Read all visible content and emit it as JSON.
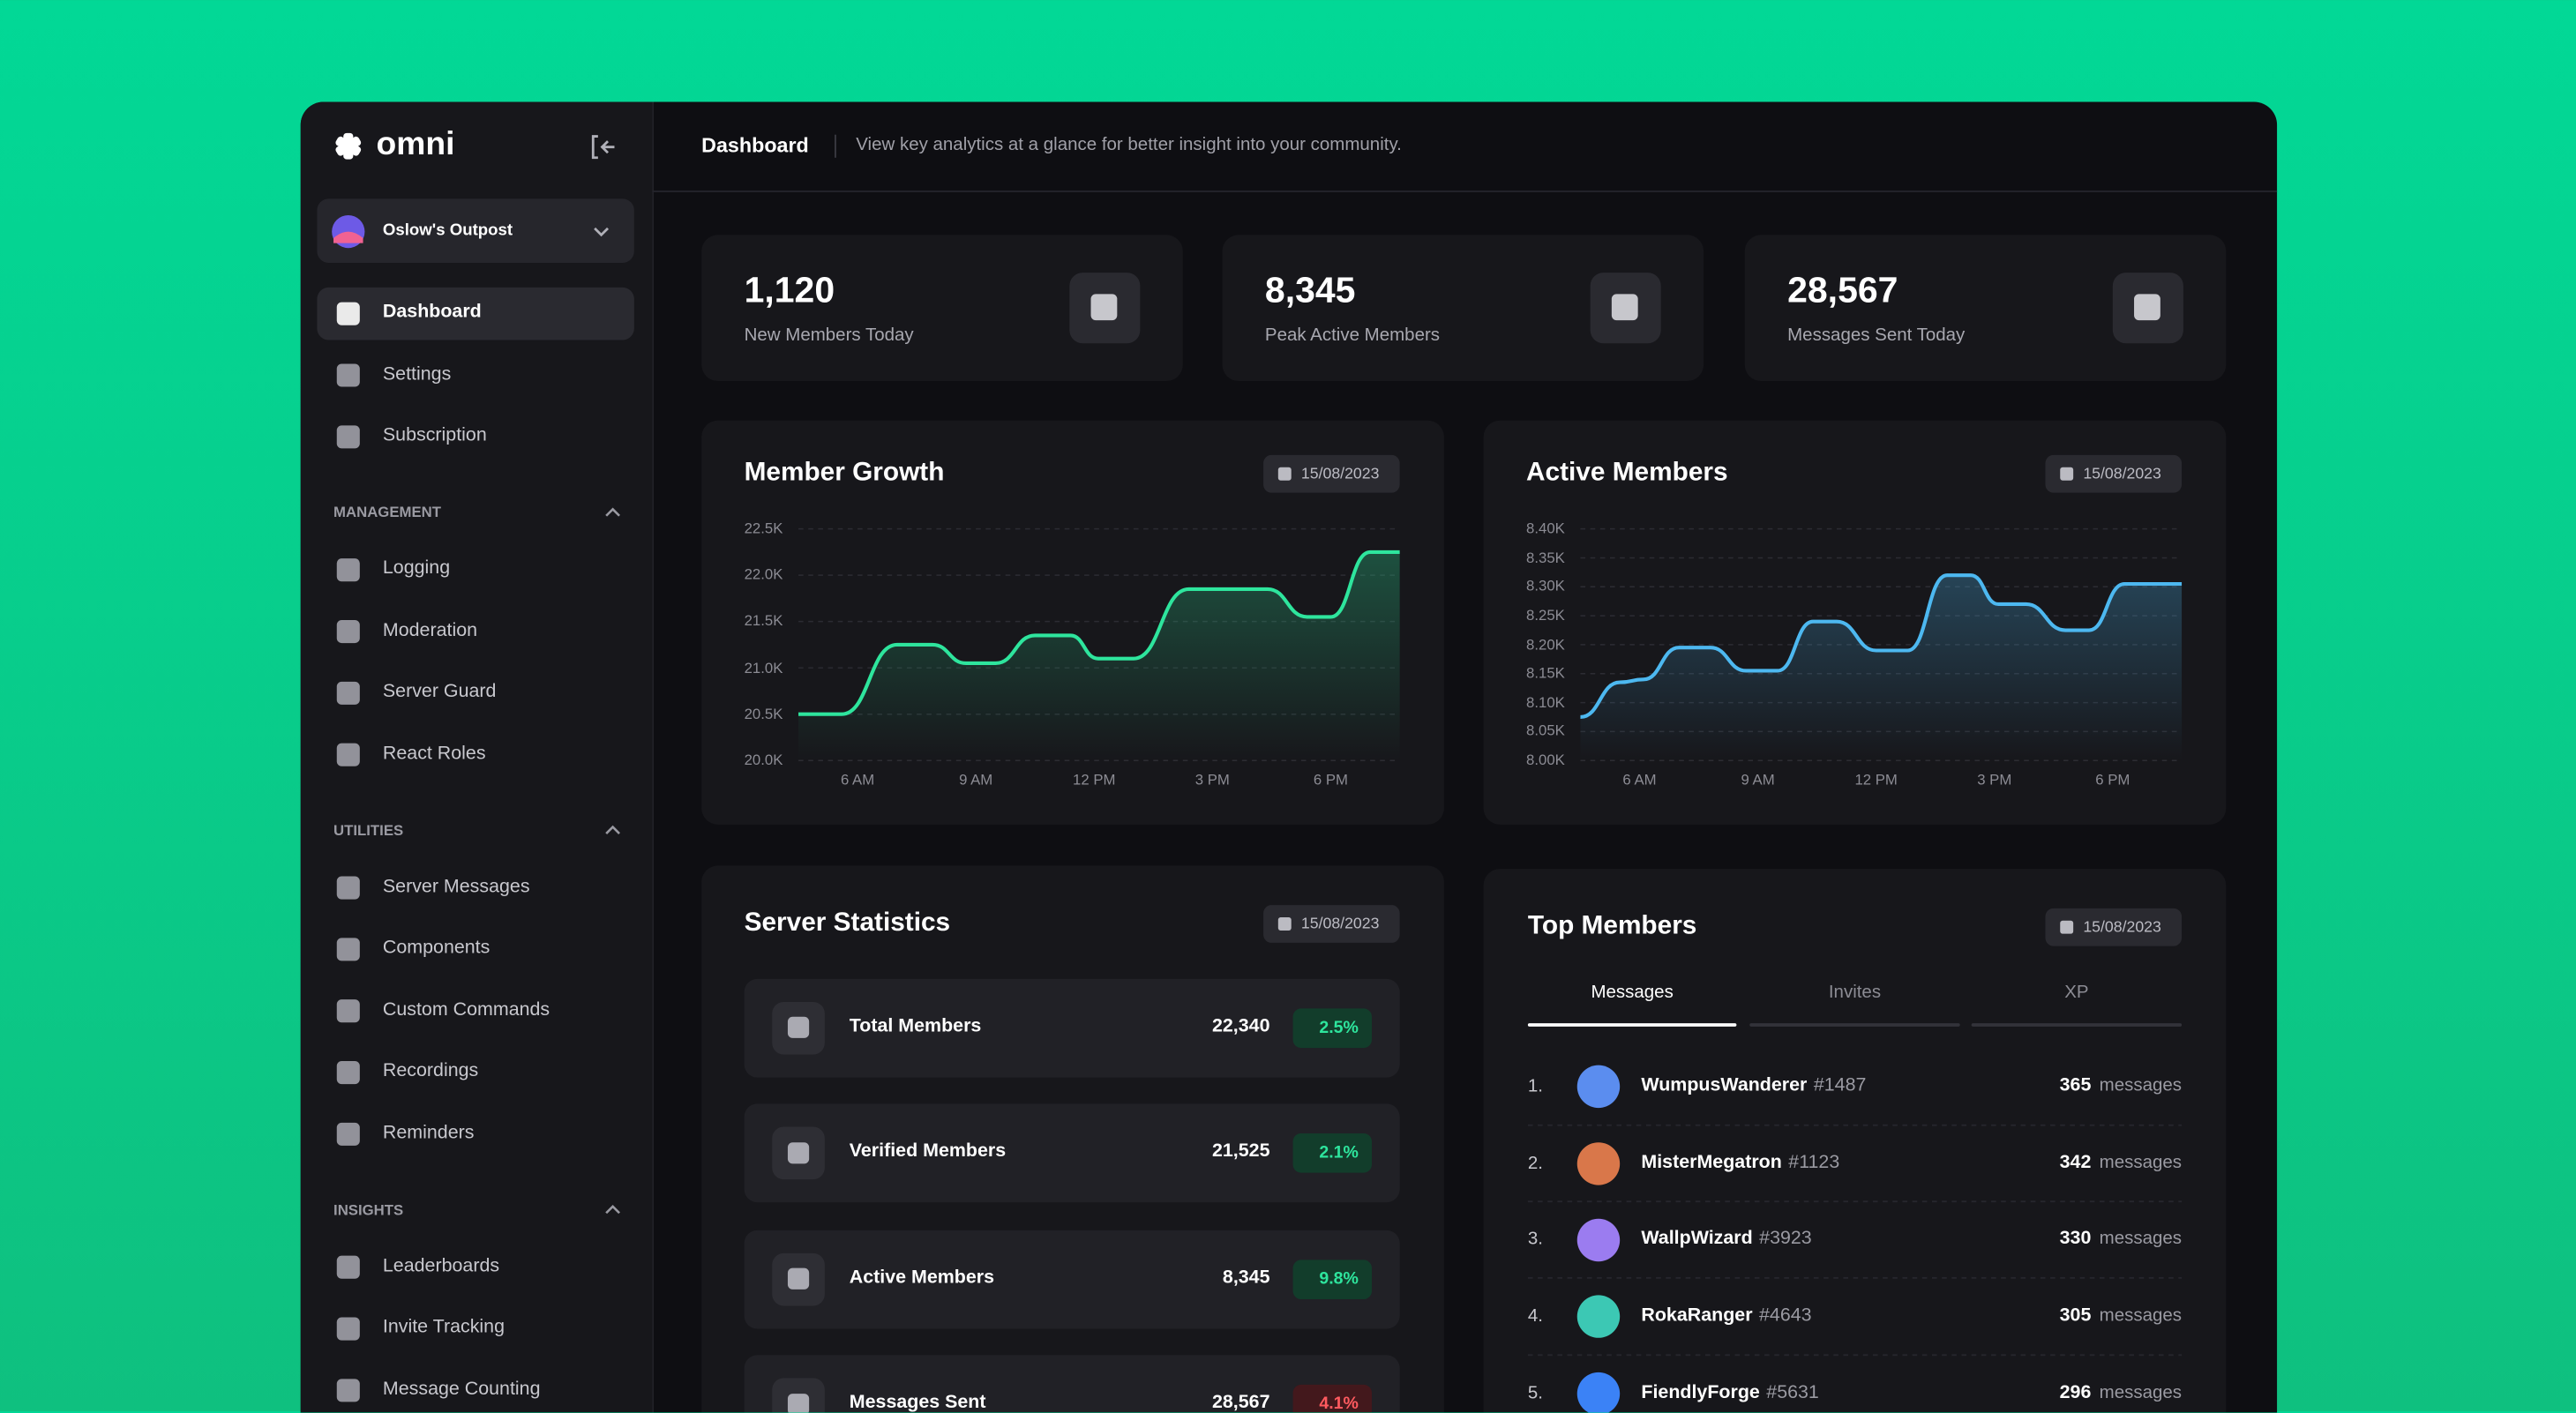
{
  "brand": "omni",
  "server": "Oslow's Outpost",
  "nav": [
    "Dashboard",
    "Settings",
    "Subscription"
  ],
  "sections": [
    {
      "title": "MANAGEMENT",
      "items": [
        "Logging",
        "Moderation",
        "Server Guard",
        "React Roles"
      ]
    },
    {
      "title": "UTILITIES",
      "items": [
        "Server Messages",
        "Components",
        "Custom Commands",
        "Recordings",
        "Reminders"
      ]
    },
    {
      "title": "INSIGHTS",
      "items": [
        "Leaderboards",
        "Invite Tracking",
        "Message Counting"
      ]
    }
  ],
  "header": {
    "title": "Dashboard",
    "subtitle": "View key analytics at a glance for better insight into your community."
  },
  "stats": [
    {
      "value": "1,120",
      "label": "New Members Today"
    },
    {
      "value": "8,345",
      "label": "Peak Active Members"
    },
    {
      "value": "28,567",
      "label": "Messages Sent Today"
    }
  ],
  "chart_data": [
    {
      "type": "line",
      "title": "Member Growth",
      "date": "15/08/2023",
      "x": [
        4.5,
        5.6,
        7,
        7.9,
        8.75,
        9.5,
        10.5,
        11.4,
        12.1,
        13,
        14.4,
        16.4,
        17.4,
        18,
        19,
        19.75
      ],
      "series": [
        {
          "name": "Members",
          "color": "#2ee59d",
          "values": [
            20500,
            20500,
            21250,
            21250,
            21050,
            21050,
            21350,
            21350,
            21100,
            21100,
            21850,
            21850,
            21550,
            21550,
            22250,
            22250
          ]
        }
      ],
      "xlim": [
        4.5,
        19.75
      ],
      "xticks": [
        {
          "value": 6,
          "label": "6 AM"
        },
        {
          "value": 9,
          "label": "9 AM"
        },
        {
          "value": 12,
          "label": "12 PM"
        },
        {
          "value": 15,
          "label": "3 PM"
        },
        {
          "value": 18,
          "label": "6 PM"
        }
      ],
      "ylim": [
        20000,
        22500
      ],
      "yticks": [
        {
          "value": 20000,
          "label": "20.0K"
        },
        {
          "value": 20500,
          "label": "20.5K"
        },
        {
          "value": 21000,
          "label": "21.0K"
        },
        {
          "value": 21500,
          "label": "21.5K"
        },
        {
          "value": 22000,
          "label": "22.0K"
        },
        {
          "value": 22500,
          "label": "22.5K"
        }
      ],
      "grid": true
    },
    {
      "type": "line",
      "title": "Active Members",
      "date": "15/08/2023",
      "x": [
        4.5,
        5.5,
        6.1,
        7,
        7.8,
        8.7,
        9.5,
        10.4,
        11,
        12,
        12.8,
        13.8,
        14.4,
        15.1,
        15.8,
        16.8,
        17.4,
        18.3,
        19.75
      ],
      "series": [
        {
          "name": "Active",
          "color": "#4db8f0",
          "values": [
            8075,
            8135,
            8140,
            8195,
            8195,
            8155,
            8155,
            8240,
            8240,
            8190,
            8190,
            8320,
            8320,
            8270,
            8270,
            8225,
            8225,
            8305,
            8305
          ]
        }
      ],
      "xlim": [
        4.5,
        19.75
      ],
      "xticks": [
        {
          "value": 6,
          "label": "6 AM"
        },
        {
          "value": 9,
          "label": "9 AM"
        },
        {
          "value": 12,
          "label": "12 PM"
        },
        {
          "value": 15,
          "label": "3 PM"
        },
        {
          "value": 18,
          "label": "6 PM"
        }
      ],
      "ylim": [
        8000,
        8400
      ],
      "yticks": [
        {
          "value": 8000,
          "label": "8.00K"
        },
        {
          "value": 8050,
          "label": "8.05K"
        },
        {
          "value": 8100,
          "label": "8.10K"
        },
        {
          "value": 8150,
          "label": "8.15K"
        },
        {
          "value": 8200,
          "label": "8.20K"
        },
        {
          "value": 8250,
          "label": "8.25K"
        },
        {
          "value": 8300,
          "label": "8.30K"
        },
        {
          "value": 8350,
          "label": "8.35K"
        },
        {
          "value": 8400,
          "label": "8.40K"
        }
      ],
      "grid": true
    }
  ],
  "server_statistics": {
    "title": "Server Statistics",
    "date": "15/08/2023",
    "rows": [
      {
        "label": "Total Members",
        "value": "22,340",
        "change": "2.5%",
        "trend": "up"
      },
      {
        "label": "Verified Members",
        "value": "21,525",
        "change": "2.1%",
        "trend": "up"
      },
      {
        "label": "Active Members",
        "value": "8,345",
        "change": "9.8%",
        "trend": "up"
      },
      {
        "label": "Messages Sent",
        "value": "28,567",
        "change": "4.1%",
        "trend": "down"
      }
    ]
  },
  "top_members": {
    "title": "Top Members",
    "date": "15/08/2023",
    "tabs": [
      "Messages",
      "Invites",
      "XP"
    ],
    "rows": [
      {
        "rank": "1.",
        "name": "WumpusWanderer",
        "tag": "#1487",
        "count": "365",
        "unit": "messages"
      },
      {
        "rank": "2.",
        "name": "MisterMegatron",
        "tag": "#1123",
        "count": "342",
        "unit": "messages"
      },
      {
        "rank": "3.",
        "name": "WallpWizard",
        "tag": "#3923",
        "count": "330",
        "unit": "messages"
      },
      {
        "rank": "4.",
        "name": "RokaRanger",
        "tag": "#4643",
        "count": "305",
        "unit": "messages"
      },
      {
        "rank": "5.",
        "name": "FiendlyForge",
        "tag": "#5631",
        "count": "296",
        "unit": "messages"
      }
    ]
  }
}
